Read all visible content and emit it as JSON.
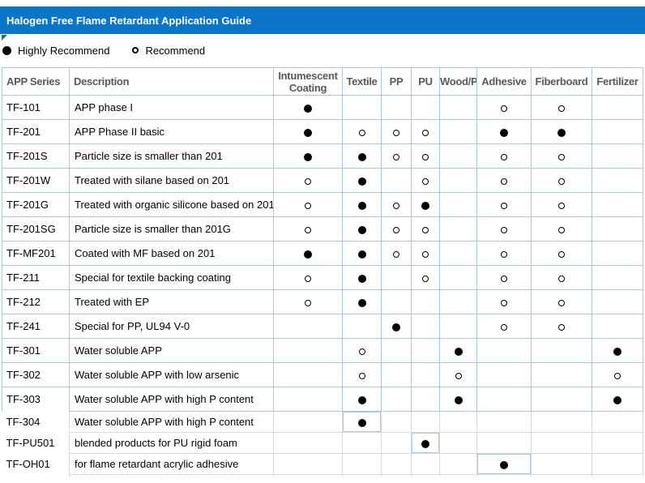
{
  "title": "Halogen Free Flame Retardant Application Guide",
  "legend": {
    "highly": "Highly Recommend",
    "recommend": "Recommend"
  },
  "colors": {
    "banner_blue": "#0b76c8",
    "table_border_blue": "#adc5de",
    "gridline_gray": "#d9d9d9",
    "header_text_gray": "#595959",
    "mark_black": "#000000",
    "flag_green": "#1f7a3d",
    "title_text": "#ffffff"
  },
  "marks_key": {
    "H": "filled-circle highly-recommend",
    "R": "open-circle recommend",
    "": "none"
  },
  "table": {
    "columns": [
      "APP Series",
      "Description",
      "Intumescent Coating",
      "Textile",
      "PP",
      "PU",
      "Wood/Paper",
      "Adhesive",
      "Fiberboard",
      "Fertilizer"
    ],
    "rows": [
      {
        "series": "TF-101",
        "description": "APP phase I",
        "marks": [
          "H",
          "",
          "",
          "",
          "",
          "R",
          "R",
          ""
        ]
      },
      {
        "series": "TF-201",
        "description": "APP Phase II basic",
        "marks": [
          "H",
          "R",
          "R",
          "R",
          "",
          "H",
          "H",
          ""
        ]
      },
      {
        "series": "TF-201S",
        "description": "Particle size is smaller than 201",
        "marks": [
          "H",
          "H",
          "R",
          "R",
          "",
          "R",
          "R",
          ""
        ]
      },
      {
        "series": "TF-201W",
        "description": "Treated with silane based on 201",
        "marks": [
          "R",
          "H",
          "",
          "R",
          "",
          "R",
          "R",
          ""
        ]
      },
      {
        "series": "TF-201G",
        "description": "Treated with organic silicone based on 201",
        "marks": [
          "R",
          "H",
          "R",
          "H",
          "",
          "R",
          "R",
          ""
        ]
      },
      {
        "series": "TF-201SG",
        "description": "Particle size is smaller than 201G",
        "marks": [
          "R",
          "H",
          "R",
          "R",
          "",
          "R",
          "R",
          ""
        ]
      },
      {
        "series": "TF-MF201",
        "description": "Coated with MF based on 201",
        "marks": [
          "H",
          "H",
          "R",
          "R",
          "",
          "R",
          "R",
          ""
        ]
      },
      {
        "series": "TF-211",
        "description": "Special for textile backing coating",
        "marks": [
          "R",
          "H",
          "",
          "R",
          "",
          "R",
          "R",
          ""
        ]
      },
      {
        "series": "TF-212",
        "description": "Treated with EP",
        "marks": [
          "R",
          "H",
          "",
          "",
          "",
          "R",
          "R",
          ""
        ]
      },
      {
        "series": "TF-241",
        "description": "Special for PP, UL94 V-0",
        "marks": [
          "",
          "",
          "H",
          "",
          "",
          "R",
          "R",
          ""
        ]
      },
      {
        "series": "TF-301",
        "description": "Water soluble APP",
        "marks": [
          "",
          "R",
          "",
          "",
          "H",
          "",
          "",
          "H"
        ]
      },
      {
        "series": "TF-302",
        "description": "Water soluble APP with low arsenic",
        "marks": [
          "",
          "R",
          "",
          "",
          "R",
          "",
          "",
          "R"
        ]
      },
      {
        "series": "TF-303",
        "description": "Water soluble APP with high P content",
        "marks": [
          "",
          "H",
          "",
          "",
          "H",
          "",
          "",
          "H"
        ],
        "labelNoBottom": true
      },
      {
        "series": "TF-304",
        "description": "Water soluble APP with high P content",
        "marks": [
          "",
          "H",
          "",
          "",
          "",
          "",
          "",
          ""
        ],
        "outside": true,
        "hl": 1
      },
      {
        "series": "TF-PU501",
        "description": "blended products for PU rigid foam",
        "marks": [
          "",
          "",
          "",
          "H",
          "",
          "",
          "",
          ""
        ],
        "outside": true,
        "hl": 3
      },
      {
        "series": "TF-OH01",
        "description": "for flame retardant acrylic adhesive",
        "marks": [
          "",
          "",
          "",
          "",
          "",
          "H",
          "",
          ""
        ],
        "outside": true,
        "hl": 5
      }
    ]
  }
}
